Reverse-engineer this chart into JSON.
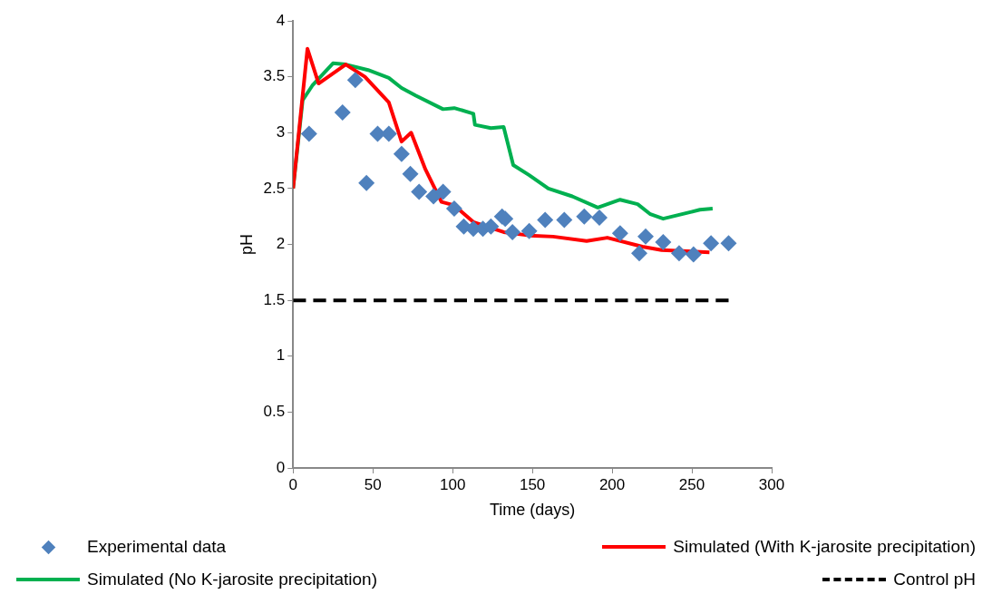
{
  "chart_data": {
    "type": "line",
    "xlabel": "Time (days)",
    "ylabel": "pH",
    "xlim": [
      0,
      300
    ],
    "xticks": [
      0,
      50,
      100,
      150,
      200,
      250,
      300
    ],
    "ylim": [
      0,
      4
    ],
    "yticks": [
      0,
      0.5,
      1,
      1.5,
      2,
      2.5,
      3,
      3.5,
      4
    ],
    "grid": false,
    "legend": "bottom",
    "series": [
      {
        "name": "Experimental data",
        "type": "scatter",
        "marker": "diamond",
        "color": "#4f81bd",
        "x": [
          10,
          31,
          39,
          46,
          53,
          60,
          68,
          73.5,
          79,
          88,
          94,
          101,
          107,
          113,
          119,
          124,
          131,
          133,
          137.5,
          148,
          158,
          170,
          182.5,
          192,
          205,
          217,
          221,
          232,
          242,
          251,
          262,
          273
        ],
        "values": [
          2.99,
          3.18,
          3.47,
          2.55,
          2.99,
          2.99,
          2.81,
          2.63,
          2.47,
          2.43,
          2.47,
          2.32,
          2.16,
          2.14,
          2.14,
          2.16,
          2.25,
          2.23,
          2.11,
          2.12,
          2.22,
          2.22,
          2.25,
          2.24,
          2.1,
          1.92,
          2.07,
          2.02,
          1.92,
          1.91,
          2.01,
          2.01
        ]
      },
      {
        "name": "Simulated (With K-jarosite precipitation)",
        "marker": "none",
        "line_style": "solid",
        "color": "#ff0000",
        "x": [
          0,
          9,
          16,
          33,
          45,
          60,
          68,
          74,
          83,
          93,
          101,
          113,
          132,
          148,
          163,
          184,
          197,
          219,
          231,
          261
        ],
        "values": [
          2.5,
          3.75,
          3.44,
          3.61,
          3.5,
          3.27,
          2.92,
          3.0,
          2.67,
          2.38,
          2.35,
          2.2,
          2.11,
          2.08,
          2.07,
          2.03,
          2.06,
          1.98,
          1.95,
          1.93
        ]
      },
      {
        "name": "Simulated (No K-jarosite precipitation)",
        "marker": "none",
        "line_style": "solid",
        "color": "#00b050",
        "x": [
          0,
          6,
          12,
          25,
          33,
          47,
          60,
          68,
          77,
          94,
          101,
          113,
          114,
          124,
          132,
          138,
          148,
          160,
          175,
          191,
          205,
          216,
          224,
          232,
          255,
          263
        ],
        "values": [
          2.5,
          3.29,
          3.42,
          3.62,
          3.61,
          3.56,
          3.49,
          3.4,
          3.33,
          3.21,
          3.22,
          3.17,
          3.07,
          3.04,
          3.05,
          2.71,
          2.62,
          2.5,
          2.43,
          2.33,
          2.4,
          2.36,
          2.27,
          2.23,
          2.31,
          2.32
        ]
      },
      {
        "name": "Control pH",
        "marker": "none",
        "line_style": "dashed",
        "color": "#000000",
        "x": [
          0,
          273
        ],
        "values": [
          1.5,
          1.5
        ]
      }
    ]
  }
}
